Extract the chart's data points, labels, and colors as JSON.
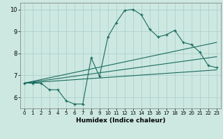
{
  "xlabel": "Humidex (Indice chaleur)",
  "bg_color": "#cce8e0",
  "grid_color": "#aacccc",
  "line_color": "#1a6b60",
  "xlim": [
    -0.5,
    23.5
  ],
  "ylim": [
    5.5,
    10.3
  ],
  "xticks": [
    0,
    1,
    2,
    3,
    4,
    5,
    6,
    7,
    8,
    9,
    10,
    11,
    12,
    13,
    14,
    15,
    16,
    17,
    18,
    19,
    20,
    21,
    22,
    23
  ],
  "yticks": [
    6,
    7,
    8,
    9,
    10
  ],
  "main_x": [
    0,
    1,
    2,
    3,
    4,
    5,
    6,
    7,
    8,
    9,
    10,
    11,
    12,
    13,
    14,
    15,
    16,
    17,
    18,
    19,
    20,
    21,
    22,
    23
  ],
  "main_y": [
    6.65,
    6.65,
    6.65,
    6.35,
    6.35,
    5.85,
    5.7,
    5.7,
    7.8,
    6.95,
    8.75,
    9.4,
    9.95,
    10.0,
    9.75,
    9.1,
    8.75,
    8.85,
    9.05,
    8.5,
    8.4,
    8.05,
    7.45,
    7.35
  ],
  "line2_x": [
    0,
    23
  ],
  "line2_y": [
    6.65,
    7.25
  ],
  "line3_x": [
    0,
    23
  ],
  "line3_y": [
    6.65,
    7.85
  ],
  "line4_x": [
    0,
    23
  ],
  "line4_y": [
    6.65,
    8.5
  ]
}
